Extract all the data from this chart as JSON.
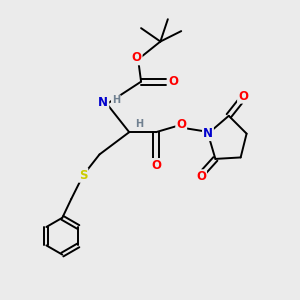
{
  "bg_color": "#ebebeb",
  "bond_color": "#000000",
  "atom_colors": {
    "O": "#ff0000",
    "N": "#0000cd",
    "S": "#cccc00",
    "H": "#708090",
    "C": "#000000"
  },
  "font_size_atom": 8.5,
  "font_size_small": 7.0,
  "lw": 1.4
}
